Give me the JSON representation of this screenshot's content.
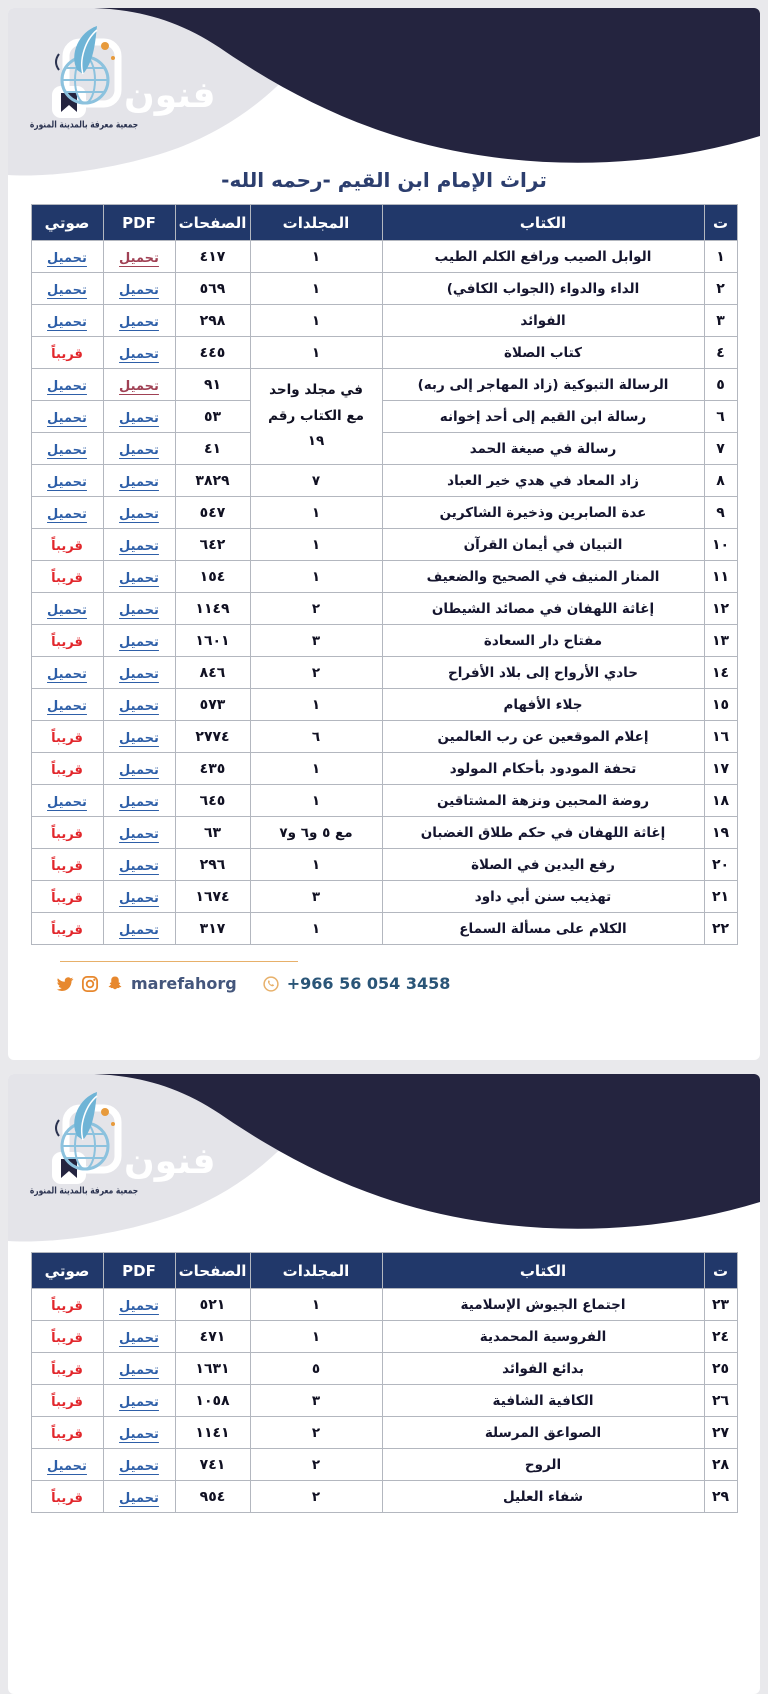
{
  "brand": {
    "logo_text": "فنون",
    "org_calligraphy": "جمعية معرفة بالمدينة المنورة"
  },
  "page1": {
    "title": "تراث الإمام ابن القيم -رحمه الله-"
  },
  "table": {
    "headers": {
      "index": "ت",
      "book": "الكتاب",
      "volumes": "المجلدات",
      "pages": "الصفحات",
      "pdf": "PDF",
      "audio": "صوتي"
    }
  },
  "labels": {
    "download": "تحميل",
    "soon": "قريباً"
  },
  "merged_volume_note": {
    "lines": [
      "في مجلد واحد",
      "مع الكتاب رقم",
      "١٩"
    ]
  },
  "rows": [
    {
      "n": "١",
      "book": "الوابل الصيب ورافع الكلم الطيب",
      "vol": "١",
      "pg": "٤١٧",
      "pdf": "download_visited",
      "audio": "download"
    },
    {
      "n": "٢",
      "book": "الداء والدواء (الجواب الكافي)",
      "vol": "١",
      "pg": "٥٦٩",
      "pdf": "download",
      "audio": "download"
    },
    {
      "n": "٣",
      "book": "الفوائد",
      "vol": "١",
      "pg": "٢٩٨",
      "pdf": "download",
      "audio": "download"
    },
    {
      "n": "٤",
      "book": "كتاب الصلاة",
      "vol": "١",
      "pg": "٤٤٥",
      "pdf": "download",
      "audio": "soon"
    },
    {
      "n": "٥",
      "book": "الرسالة التبوكية (زاد المهاجر إلى ربه)",
      "vol": "merged3",
      "pg": "٩١",
      "pdf": "download_visited",
      "audio": "download"
    },
    {
      "n": "٦",
      "book": "رسالة ابن القيم إلى أحد إخوانه",
      "vol": null,
      "pg": "٥٣",
      "pdf": "download",
      "audio": "download"
    },
    {
      "n": "٧",
      "book": "رسالة في صيغة الحمد",
      "vol": null,
      "pg": "٤١",
      "pdf": "download",
      "audio": "download"
    },
    {
      "n": "٨",
      "book": "زاد المعاد في هدي خير العباد",
      "vol": "٧",
      "pg": "٣٨٢٩",
      "pdf": "download",
      "audio": "download"
    },
    {
      "n": "٩",
      "book": "عدة الصابرين وذخيرة الشاكرين",
      "vol": "١",
      "pg": "٥٤٧",
      "pdf": "download",
      "audio": "download"
    },
    {
      "n": "١٠",
      "book": "التبيان في أيمان القرآن",
      "vol": "١",
      "pg": "٦٤٢",
      "pdf": "download",
      "audio": "soon"
    },
    {
      "n": "١١",
      "book": "المنار المنيف في الصحيح والضعيف",
      "vol": "١",
      "pg": "١٥٤",
      "pdf": "download",
      "audio": "soon"
    },
    {
      "n": "١٢",
      "book": "إغاثة اللهفان في مصائد الشيطان",
      "vol": "٢",
      "pg": "١١٤٩",
      "pdf": "download",
      "audio": "download"
    },
    {
      "n": "١٣",
      "book": "مفتاح دار السعادة",
      "vol": "٣",
      "pg": "١٦٠١",
      "pdf": "download",
      "audio": "soon"
    },
    {
      "n": "١٤",
      "book": "حادي الأرواح إلى بلاد الأفراح",
      "vol": "٢",
      "pg": "٨٤٦",
      "pdf": "download",
      "audio": "download"
    },
    {
      "n": "١٥",
      "book": "جلاء الأفهام",
      "vol": "١",
      "pg": "٥٧٣",
      "pdf": "download",
      "audio": "download"
    },
    {
      "n": "١٦",
      "book": "إعلام الموقعين عن رب العالمين",
      "vol": "٦",
      "pg": "٢٧٧٤",
      "pdf": "download",
      "audio": "soon"
    },
    {
      "n": "١٧",
      "book": "تحفة المودود بأحكام المولود",
      "vol": "١",
      "pg": "٤٣٥",
      "pdf": "download",
      "audio": "soon"
    },
    {
      "n": "١٨",
      "book": "روضة المحبين ونزهة المشتاقين",
      "vol": "١",
      "pg": "٦٤٥",
      "pdf": "download",
      "audio": "download"
    },
    {
      "n": "١٩",
      "book": "إغاثة اللهفان في حكم طلاق الغضبان",
      "vol": "مع ٥ و٦ و٧",
      "pg": "٦٣",
      "pdf": "download",
      "audio": "soon"
    },
    {
      "n": "٢٠",
      "book": "رفع اليدين في الصلاة",
      "vol": "١",
      "pg": "٢٩٦",
      "pdf": "download",
      "audio": "soon"
    },
    {
      "n": "٢١",
      "book": "تهذيب سنن أبي داود",
      "vol": "٣",
      "pg": "١٦٧٤",
      "pdf": "download",
      "audio": "soon"
    },
    {
      "n": "٢٢",
      "book": "الكلام على مسألة السماع",
      "vol": "١",
      "pg": "٣١٧",
      "pdf": "download",
      "audio": "soon"
    },
    {
      "n": "٢٣",
      "book": "اجتماع الجيوش الإسلامية",
      "vol": "١",
      "pg": "٥٢١",
      "pdf": "download",
      "audio": "soon"
    },
    {
      "n": "٢٤",
      "book": "الفروسية المحمدية",
      "vol": "١",
      "pg": "٤٧١",
      "pdf": "download",
      "audio": "soon"
    },
    {
      "n": "٢٥",
      "book": "بدائع الفوائد",
      "vol": "٥",
      "pg": "١٦٣١",
      "pdf": "download",
      "audio": "soon"
    },
    {
      "n": "٢٦",
      "book": "الكافية الشافية",
      "vol": "٣",
      "pg": "١٠٥٨",
      "pdf": "download",
      "audio": "soon"
    },
    {
      "n": "٢٧",
      "book": "الصواعق المرسلة",
      "vol": "٢",
      "pg": "١١٤١",
      "pdf": "download",
      "audio": "soon"
    },
    {
      "n": "٢٨",
      "book": "الروح",
      "vol": "٢",
      "pg": "٧٤١",
      "pdf": "download",
      "audio": "download"
    },
    {
      "n": "٢٩",
      "book": "شفاء العليل",
      "vol": "٢",
      "pg": "٩٥٤",
      "pdf": "download",
      "audio": "soon"
    }
  ],
  "page_split": {
    "page1_rows": 22
  },
  "footer": {
    "social_handle": "marefahorg",
    "phone": "+966 56 054 3458",
    "icons": [
      "twitter-icon",
      "instagram-icon",
      "snapchat-icon",
      "whatsapp-icon"
    ]
  },
  "colors": {
    "header_navy": "#24243f",
    "table_header_navy": "#21386a",
    "link_blue": "#2e5fa8",
    "link_visited_maroon": "#a04154",
    "soon_red": "#e2272c",
    "accent_orange": "#e7882e",
    "page_bg_gray": "#e9e9ec"
  }
}
